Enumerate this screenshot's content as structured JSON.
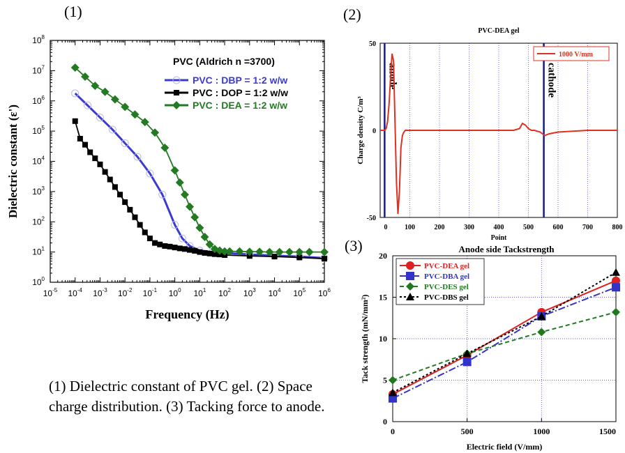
{
  "caption": "(1) Dielectric constant of PVC gel. (2) Space charge distribution. (3) Tacking force to anode.",
  "chart_data": [
    {
      "panel": "(1)",
      "type": "line",
      "title": "PVC (Aldrich n =3700)",
      "xlabel": "Frequency (Hz)",
      "ylabel": "Dielectric constant (ε')",
      "xscale": "log",
      "yscale": "log",
      "xlim": [
        -5,
        6
      ],
      "ylim": [
        0,
        8
      ],
      "x_ticks": [
        -5,
        -4,
        -3,
        -2,
        -1,
        0,
        1,
        2,
        3,
        4,
        5,
        6
      ],
      "y_ticks": [
        0,
        1,
        2,
        3,
        4,
        5,
        6,
        7,
        8
      ],
      "legend_position": "top-right",
      "grid": false,
      "series": [
        {
          "name": "PVC : DBP = 1:2 w/w",
          "color": "#3b3bd1",
          "marker": "open-circle",
          "x": [
            -4,
            -3.5,
            -3,
            -2.5,
            -2,
            -1.5,
            -1,
            -0.5,
            0,
            0.3,
            0.6,
            1,
            1.5,
            2,
            3,
            4,
            5,
            6
          ],
          "y": [
            6.25,
            5.85,
            5.45,
            5.05,
            4.6,
            4.15,
            3.6,
            2.9,
            1.9,
            1.45,
            1.2,
            1.05,
            1.0,
            0.97,
            0.92,
            0.88,
            0.85,
            0.8
          ]
        },
        {
          "name": "PVC : DOP = 1:2 w/w",
          "color": "#000000",
          "marker": "filled-square",
          "x": [
            -4,
            -3.8,
            -3.6,
            -3.4,
            -3.2,
            -3,
            -2.8,
            -2.6,
            -2.4,
            -2.2,
            -2,
            -1.8,
            -1.6,
            -1.4,
            -1.2,
            -1,
            -0.8,
            -0.6,
            -0.4,
            -0.2,
            0,
            0.2,
            0.4,
            0.6,
            0.8,
            1,
            1.2,
            1.4,
            1.6,
            1.8,
            2,
            3,
            4,
            5,
            6
          ],
          "y": [
            5.33,
            4.75,
            4.55,
            4.3,
            4.1,
            3.9,
            3.65,
            3.4,
            3.15,
            2.9,
            2.65,
            2.4,
            2.15,
            1.9,
            1.65,
            1.45,
            1.3,
            1.25,
            1.2,
            1.18,
            1.15,
            1.12,
            1.1,
            1.07,
            1.04,
            1.0,
            0.97,
            0.95,
            0.93,
            0.92,
            0.9,
            0.87,
            0.85,
            0.82,
            0.78
          ]
        },
        {
          "name": "PVC : DEA = 1:2 w/w",
          "color": "#237a23",
          "marker": "filled-diamond",
          "x": [
            -4,
            -3.6,
            -3.2,
            -2.8,
            -2.4,
            -2,
            -1.6,
            -1.2,
            -0.8,
            -0.4,
            0,
            0.2,
            0.4,
            0.6,
            0.8,
            1,
            1.2,
            1.4,
            1.6,
            1.8,
            2,
            2.2,
            2.6,
            3,
            3.4,
            3.8,
            4.2,
            4.6,
            5,
            5.4,
            6
          ],
          "y": [
            7.1,
            6.8,
            6.5,
            6.3,
            6.05,
            5.8,
            5.55,
            5.3,
            4.95,
            4.45,
            3.7,
            3.3,
            2.9,
            2.5,
            2.15,
            1.8,
            1.5,
            1.25,
            1.1,
            1.05,
            1.02,
            1.02,
            1.02,
            1.01,
            1.01,
            1.0,
            1.0,
            1.0,
            1.0,
            1.0,
            1.0
          ]
        }
      ]
    },
    {
      "panel": "(2)",
      "type": "line",
      "title": "PVC-DEA gel",
      "xlabel": "Point",
      "ylabel": "Charge density C/m³",
      "xlim": [
        0,
        800
      ],
      "ylim": [
        -50,
        50
      ],
      "x_ticks": [
        0,
        100,
        200,
        300,
        400,
        500,
        600,
        700,
        800
      ],
      "y_ticks": [
        -50,
        0,
        50
      ],
      "grid": true,
      "legend_position": "top-right",
      "annotations": [
        "anode",
        "cathode"
      ],
      "electrodes": [
        {
          "label": "anode",
          "x": 15
        },
        {
          "label": "cathode",
          "x": 552
        }
      ],
      "series": [
        {
          "name": "1000 V/mm",
          "color": "#e03020",
          "x": [
            0,
            15,
            20,
            25,
            30,
            35,
            40,
            45,
            50,
            55,
            60,
            65,
            70,
            75,
            80,
            85,
            90,
            100,
            200,
            300,
            400,
            450,
            470,
            480,
            490,
            500,
            510,
            520,
            540,
            555,
            570,
            600,
            700,
            800
          ],
          "y": [
            0,
            0,
            1,
            5,
            15,
            30,
            44,
            40,
            5,
            -30,
            -48,
            -35,
            -10,
            -3,
            -1,
            0,
            0,
            0,
            0,
            0,
            0,
            0,
            1,
            4,
            3,
            1,
            0,
            0,
            -1,
            -3,
            -2,
            -1,
            0,
            0
          ]
        }
      ]
    },
    {
      "panel": "(3)",
      "type": "line",
      "title": "Anode side Tackstrength",
      "xlabel": "Electric field (V/mm)",
      "ylabel": "Tack strength (mN/mm²)",
      "xlim": [
        0,
        1500
      ],
      "ylim": [
        0,
        20
      ],
      "x_ticks": [
        0,
        500,
        1000,
        1500
      ],
      "y_ticks": [
        0,
        5,
        10,
        15,
        20
      ],
      "grid": true,
      "legend_position": "top-left",
      "series": [
        {
          "name": "PVC-DEA gel",
          "color": "#e02020",
          "marker": "circle",
          "dash": "solid",
          "x": [
            0,
            500,
            1000,
            1500
          ],
          "y": [
            3.3,
            8.0,
            13.2,
            17.0
          ]
        },
        {
          "name": "PVC-DBA gel",
          "color": "#3333cc",
          "marker": "square",
          "dash": "dashdot",
          "x": [
            0,
            500,
            1000,
            1500
          ],
          "y": [
            2.8,
            7.2,
            12.7,
            16.2
          ]
        },
        {
          "name": "PVC-DES gel",
          "color": "#1f7a1f",
          "marker": "diamond",
          "dash": "dashed",
          "x": [
            0,
            500,
            1000,
            1500
          ],
          "y": [
            5.0,
            8.2,
            10.8,
            13.2
          ]
        },
        {
          "name": "PVC-DBS gel",
          "color": "#000000",
          "marker": "triangle",
          "dash": "dotted",
          "x": [
            0,
            500,
            1000,
            1500
          ],
          "y": [
            3.5,
            8.2,
            12.7,
            18.0
          ]
        }
      ]
    }
  ]
}
